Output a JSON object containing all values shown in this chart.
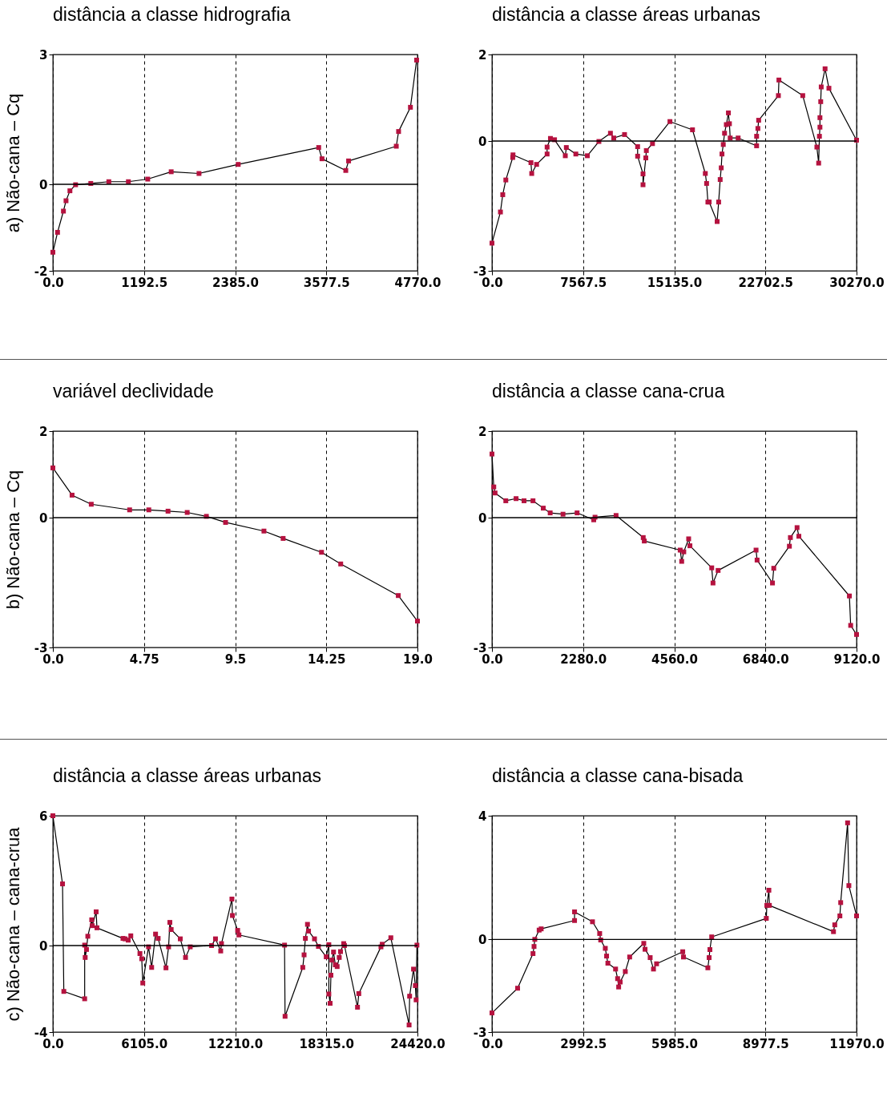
{
  "chart_data": [
    {
      "type": "line",
      "title": "distância a classe hidrografia",
      "ylabel": "a) Não-cana – Cq",
      "xlim": [
        0,
        4770
      ],
      "xticks": [
        {
          "value": 0,
          "label": "0.0"
        },
        1192.5,
        {
          "value": 2385,
          "label": "2385.0"
        },
        3577.5,
        {
          "value": 4770,
          "label": "4770.0"
        }
      ],
      "ylim": [
        -2,
        3
      ],
      "yticks": [
        -2,
        0,
        3
      ],
      "grid": "x",
      "marker": "square",
      "line_style": "solid",
      "ref_lines": [
        {
          "axis": "y",
          "value": 0
        }
      ],
      "series": [
        {
          "color": "#b5123f",
          "x": [
            0,
            61,
            138,
            172,
            223,
            297,
            496,
            732,
            988,
            1241,
            1548,
            1912,
            2425,
            3478,
            3521,
            3832,
            3869,
            4493,
            4523,
            4678,
            4759
          ],
          "values": [
            -1.57,
            -1.11,
            -0.62,
            -0.38,
            -0.15,
            -0.01,
            0.02,
            0.06,
            0.06,
            0.12,
            0.29,
            0.25,
            0.46,
            0.85,
            0.59,
            0.32,
            0.54,
            0.88,
            1.22,
            1.78,
            2.87
          ]
        }
      ]
    },
    {
      "type": "line",
      "title": "distância a classe áreas urbanas",
      "xlim": [
        0,
        30270
      ],
      "xticks": [
        {
          "value": 0,
          "label": "0.0"
        },
        7567.5,
        {
          "value": 15135,
          "label": "15135.0"
        },
        22702.5,
        {
          "value": 30270,
          "label": "30270.0"
        }
      ],
      "ylim": [
        -3,
        2
      ],
      "yticks": [
        -3,
        0,
        2
      ],
      "grid": "x",
      "marker": "square",
      "line_style": "solid",
      "ref_lines": [
        {
          "axis": "y",
          "value": 0
        }
      ],
      "series": [
        {
          "color": "#b5123f",
          "x": [
            0,
            703,
            894,
            1150,
            1724,
            1746,
            3236,
            3300,
            3704,
            4577,
            4577,
            4854,
            5195,
            6089,
            6174,
            6962,
            7920,
            8878,
            9836,
            10113,
            11007,
            12093,
            12093,
            12540,
            12540,
            12774,
            12817,
            13328,
            14776,
            16649,
            17714,
            17820,
            17927,
            18033,
            18693,
            18821,
            18948,
            19034,
            19097,
            19204,
            19310,
            19459,
            19630,
            19715,
            19779,
            20439,
            21972,
            21972,
            22078,
            22142,
            23781,
            23824,
            25804,
            26975,
            27124,
            27188,
            27231,
            27231,
            27295,
            27337,
            27657,
            27976,
            30270
          ],
          "values": [
            -2.36,
            -1.64,
            -1.24,
            -0.9,
            -0.38,
            -0.32,
            -0.5,
            -0.75,
            -0.54,
            -0.3,
            -0.14,
            0.06,
            0.03,
            -0.34,
            -0.15,
            -0.3,
            -0.34,
            -0.01,
            0.18,
            0.07,
            0.15,
            -0.13,
            -0.35,
            -0.76,
            -1.01,
            -0.39,
            -0.22,
            -0.06,
            0.45,
            0.26,
            -0.75,
            -0.98,
            -1.41,
            -1.41,
            -1.86,
            -1.41,
            -0.89,
            -0.62,
            -0.3,
            -0.08,
            0.18,
            0.38,
            0.65,
            0.4,
            0.07,
            0.07,
            -0.11,
            0.11,
            0.29,
            0.48,
            1.05,
            1.41,
            1.05,
            -0.14,
            -0.51,
            0.11,
            0.32,
            0.54,
            0.91,
            1.25,
            1.67,
            1.22,
            0.02
          ]
        }
      ]
    },
    {
      "type": "line",
      "title": "variável declividade",
      "ylabel": "b) Não-cana – Cq",
      "xlim": [
        0,
        19
      ],
      "xticks": [
        {
          "value": 0,
          "label": "0.0"
        },
        4.75,
        9.5,
        14.25,
        {
          "value": 19,
          "label": "19.0"
        }
      ],
      "ylim": [
        -3,
        2
      ],
      "yticks": [
        -3,
        0,
        2
      ],
      "grid": "x",
      "marker": "square",
      "line_style": "solid",
      "ref_lines": [
        {
          "axis": "y",
          "value": 0
        }
      ],
      "series": [
        {
          "color": "#b5123f",
          "x": [
            0,
            1,
            2,
            4,
            5,
            6,
            7,
            8,
            9,
            11,
            12,
            14,
            15,
            18,
            19
          ],
          "values": [
            1.15,
            0.52,
            0.31,
            0.18,
            0.18,
            0.15,
            0.12,
            0.03,
            -0.11,
            -0.31,
            -0.48,
            -0.8,
            -1.07,
            -1.8,
            -2.39
          ]
        }
      ]
    },
    {
      "type": "line",
      "title": "distância a classe cana-crua",
      "xlim": [
        0,
        9120
      ],
      "xticks": [
        {
          "value": 0,
          "label": "0.0"
        },
        {
          "value": 2280,
          "label": "2280.0"
        },
        {
          "value": 4560,
          "label": "4560.0"
        },
        {
          "value": 6840,
          "label": "6840.0"
        },
        {
          "value": 9120,
          "label": "9120.0"
        }
      ],
      "ylim": [
        -3,
        2
      ],
      "yticks": [
        -3,
        0,
        2
      ],
      "grid": "x",
      "marker": "square",
      "line_style": "solid",
      "ref_lines": [
        {
          "axis": "y",
          "value": 0
        }
      ],
      "series": [
        {
          "color": "#b5123f",
          "x": [
            0,
            45,
            77,
            346,
            603,
            802,
            1026,
            1283,
            1456,
            1777,
            2129,
            2546,
            2578,
            3104,
            3784,
            3810,
            4708,
            4746,
            4798,
            4920,
            4952,
            5497,
            5529,
            5657,
            6606,
            6632,
            7017,
            7049,
            7440,
            7465,
            7632,
            7677,
            8941,
            8973,
            9120
          ],
          "values": [
            1.47,
            0.71,
            0.57,
            0.39,
            0.44,
            0.39,
            0.39,
            0.22,
            0.11,
            0.08,
            0.11,
            -0.05,
            0.01,
            0.05,
            -0.46,
            -0.54,
            -0.75,
            -1.01,
            -0.79,
            -0.49,
            -0.65,
            -1.16,
            -1.51,
            -1.22,
            -0.75,
            -0.98,
            -1.51,
            -1.17,
            -0.66,
            -0.46,
            -0.23,
            -0.43,
            -1.81,
            -2.49,
            -2.7
          ]
        }
      ]
    },
    {
      "type": "line",
      "title": "distância a classe áreas urbanas",
      "ylabel": "c) Não-cana – cana-crua",
      "xlim": [
        0,
        24420
      ],
      "xticks": [
        {
          "value": 0,
          "label": "0.0"
        },
        {
          "value": 6105,
          "label": "6105.0"
        },
        {
          "value": 12210,
          "label": "12210.0"
        },
        {
          "value": 18315,
          "label": "18315.0"
        },
        {
          "value": 24420,
          "label": "24420.0"
        }
      ],
      "ylim": [
        -4,
        6
      ],
      "yticks": [
        -4,
        0,
        6
      ],
      "grid": "x",
      "marker": "square",
      "line_style": "solid",
      "ref_lines": [
        {
          "axis": "y",
          "value": 0
        }
      ],
      "series": [
        {
          "color": "#b5123f",
          "x": [
            0,
            646,
            733,
            2129,
            2129,
            2164,
            2252,
            2339,
            2601,
            2636,
            2898,
            2950,
            4695,
            4835,
            5044,
            5219,
            5830,
            5952,
            6022,
            6406,
            6615,
            6877,
            7051,
            7575,
            7750,
            7837,
            7924,
            8535,
            8885,
            9199,
            10630,
            10892,
            11241,
            11294,
            11992,
            12026,
            12376,
            12463,
            15517,
            15552,
            16739,
            16826,
            16913,
            17053,
            17123,
            17524,
            17786,
            18310,
            18484,
            18484,
            18571,
            18624,
            18693,
            18798,
            18920,
            19042,
            19182,
            19269,
            19479,
            19531,
            20404,
            20491,
            21975,
            22062,
            22638,
            23860,
            23895,
            24157,
            24279,
            24332,
            24385
          ],
          "values": [
            6.0,
            2.85,
            -2.12,
            -2.46,
            0.02,
            -0.55,
            -0.18,
            0.43,
            1.19,
            0.92,
            1.56,
            0.82,
            0.33,
            0.31,
            0.25,
            0.45,
            -0.37,
            -0.61,
            -1.73,
            -0.06,
            -1.01,
            0.53,
            0.33,
            -1.03,
            -0.06,
            1.07,
            0.74,
            0.31,
            -0.55,
            -0.06,
            0.0,
            0.31,
            -0.25,
            0.09,
            2.15,
            1.39,
            0.7,
            0.49,
            0.02,
            -3.27,
            -1.01,
            -0.43,
            0.33,
            0.98,
            0.67,
            0.31,
            -0.04,
            -0.52,
            0.04,
            -2.24,
            -2.67,
            -1.37,
            -0.67,
            -0.3,
            -0.89,
            -0.97,
            -0.55,
            -0.28,
            0.09,
            0.0,
            -2.85,
            -2.22,
            -0.06,
            0.06,
            0.36,
            -3.67,
            -2.34,
            -1.09,
            -1.85,
            -2.51,
            0.02
          ]
        }
      ]
    },
    {
      "type": "line",
      "title": "distância a classe cana-bisada",
      "xlim": [
        0,
        11970
      ],
      "xticks": [
        {
          "value": 0,
          "label": "0.0"
        },
        2992.5,
        {
          "value": 5985,
          "label": "5985.0"
        },
        8977.5,
        {
          "value": 11970,
          "label": "11970.0"
        }
      ],
      "ylim": [
        -3,
        4
      ],
      "yticks": [
        -3,
        0,
        4
      ],
      "grid": "x",
      "marker": "square",
      "line_style": "solid",
      "ref_lines": [
        {
          "axis": "y",
          "value": 0
        }
      ],
      "series": [
        {
          "color": "#b5123f",
          "x": [
            0,
            842,
            1347,
            1381,
            1406,
            1549,
            1616,
            2711,
            2711,
            3300,
            3536,
            3570,
            3721,
            3763,
            3805,
            4058,
            4125,
            4159,
            4209,
            4378,
            4521,
            4984,
            5026,
            5194,
            5303,
            5404,
            6263,
            6288,
            7088,
            7130,
            7155,
            7214,
            9007,
            9024,
            9091,
            9108,
            11213,
            11255,
            11423,
            11449,
            11676,
            11718,
            11970
          ],
          "values": [
            -2.38,
            -1.58,
            -0.46,
            -0.23,
            0.0,
            0.3,
            0.34,
            0.61,
            0.89,
            0.57,
            0.19,
            -0.02,
            -0.29,
            -0.54,
            -0.77,
            -0.96,
            -1.27,
            -1.54,
            -1.38,
            -1.04,
            -0.57,
            -0.13,
            -0.32,
            -0.59,
            -0.96,
            -0.79,
            -0.4,
            -0.57,
            -0.92,
            -0.59,
            -0.33,
            0.08,
            0.68,
            1.1,
            1.59,
            1.1,
            0.25,
            0.47,
            0.76,
            1.19,
            3.77,
            1.74,
            0.76
          ]
        }
      ]
    }
  ]
}
